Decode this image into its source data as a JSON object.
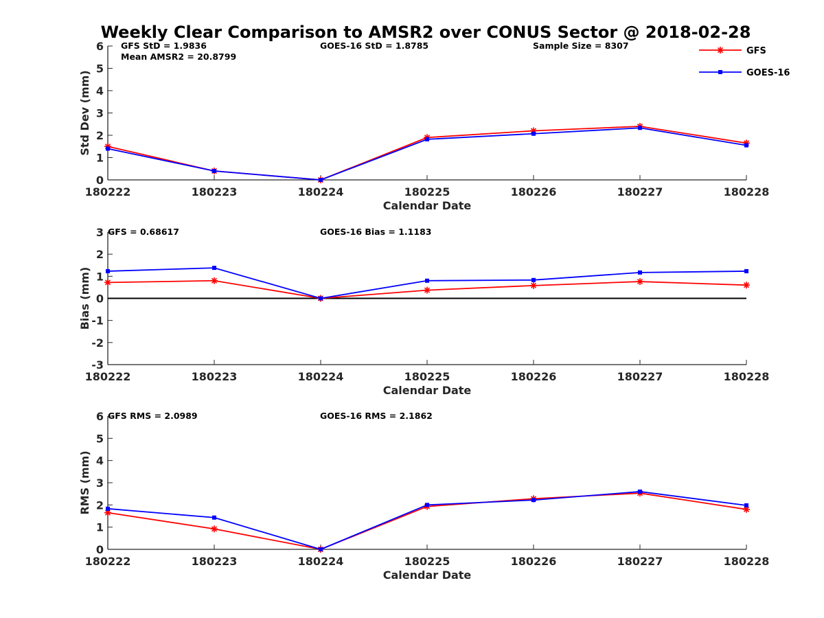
{
  "figure": {
    "title": "Weekly Clear Comparison to AMSR2 over CONUS Sector @ 2018-02-28"
  },
  "legend": {
    "placement": "top-right",
    "entries": [
      {
        "label": "GFS",
        "color": "#ff0000",
        "marker": "asterisk"
      },
      {
        "label": "GOES-16",
        "color": "#0000ff",
        "marker": "square"
      }
    ]
  },
  "chart_data": [
    {
      "type": "line",
      "xlabel": "Calendar Date",
      "ylabel": "Std Dev (mm)",
      "x": [
        "180222",
        "180223",
        "180224",
        "180225",
        "180226",
        "180227",
        "180228"
      ],
      "ylim": [
        0,
        6
      ],
      "yticks": [
        "0",
        "1",
        "2",
        "3",
        "4",
        "5",
        "6"
      ],
      "zero_line": false,
      "grid": false,
      "annotations": {
        "left": "GFS StD = 1.9836",
        "left2": "Mean AMSR2 = 20.8799",
        "center": "GOES-16 StD = 1.8785",
        "right": "Sample Size = 8307"
      },
      "series": [
        {
          "name": "GFS",
          "color": "#ff0000",
          "marker": "asterisk",
          "values": [
            1.5,
            0.4,
            0.0,
            1.9,
            2.2,
            2.4,
            1.65
          ]
        },
        {
          "name": "GOES-16",
          "color": "#0000ff",
          "marker": "square",
          "values": [
            1.4,
            0.4,
            0.0,
            1.82,
            2.07,
            2.33,
            1.55
          ]
        }
      ]
    },
    {
      "type": "line",
      "xlabel": "Calendar Date",
      "ylabel": "Bias (mm)",
      "x": [
        "180222",
        "180223",
        "180224",
        "180225",
        "180226",
        "180227",
        "180228"
      ],
      "ylim": [
        -3,
        3
      ],
      "yticks": [
        "-3",
        "-2",
        "-1",
        "0",
        "1",
        "2",
        "3"
      ],
      "zero_line": true,
      "grid": false,
      "annotations": {
        "left": "GFS = 0.68617",
        "left2": "",
        "center": "GOES-16 Bias  = 1.1183",
        "right": ""
      },
      "series": [
        {
          "name": "GFS",
          "color": "#ff0000",
          "marker": "asterisk",
          "values": [
            0.72,
            0.8,
            0.0,
            0.37,
            0.58,
            0.76,
            0.6
          ]
        },
        {
          "name": "GOES-16",
          "color": "#0000ff",
          "marker": "square",
          "values": [
            1.23,
            1.38,
            0.0,
            0.8,
            0.83,
            1.17,
            1.23
          ]
        }
      ]
    },
    {
      "type": "line",
      "xlabel": "Calendar Date",
      "ylabel": "RMS (mm)",
      "x": [
        "180222",
        "180223",
        "180224",
        "180225",
        "180226",
        "180227",
        "180228"
      ],
      "ylim": [
        0,
        6
      ],
      "yticks": [
        "0",
        "1",
        "2",
        "3",
        "4",
        "5",
        "6"
      ],
      "zero_line": false,
      "grid": false,
      "annotations": {
        "left": "GFS RMS = 2.0989",
        "left2": "",
        "center": "GOES-16 RMS = 2.1862",
        "right": ""
      },
      "series": [
        {
          "name": "GFS",
          "color": "#ff0000",
          "marker": "asterisk",
          "values": [
            1.65,
            0.92,
            0.0,
            1.93,
            2.28,
            2.53,
            1.8
          ]
        },
        {
          "name": "GOES-16",
          "color": "#0000ff",
          "marker": "square",
          "values": [
            1.83,
            1.43,
            0.0,
            2.0,
            2.22,
            2.6,
            1.98
          ]
        }
      ]
    }
  ]
}
